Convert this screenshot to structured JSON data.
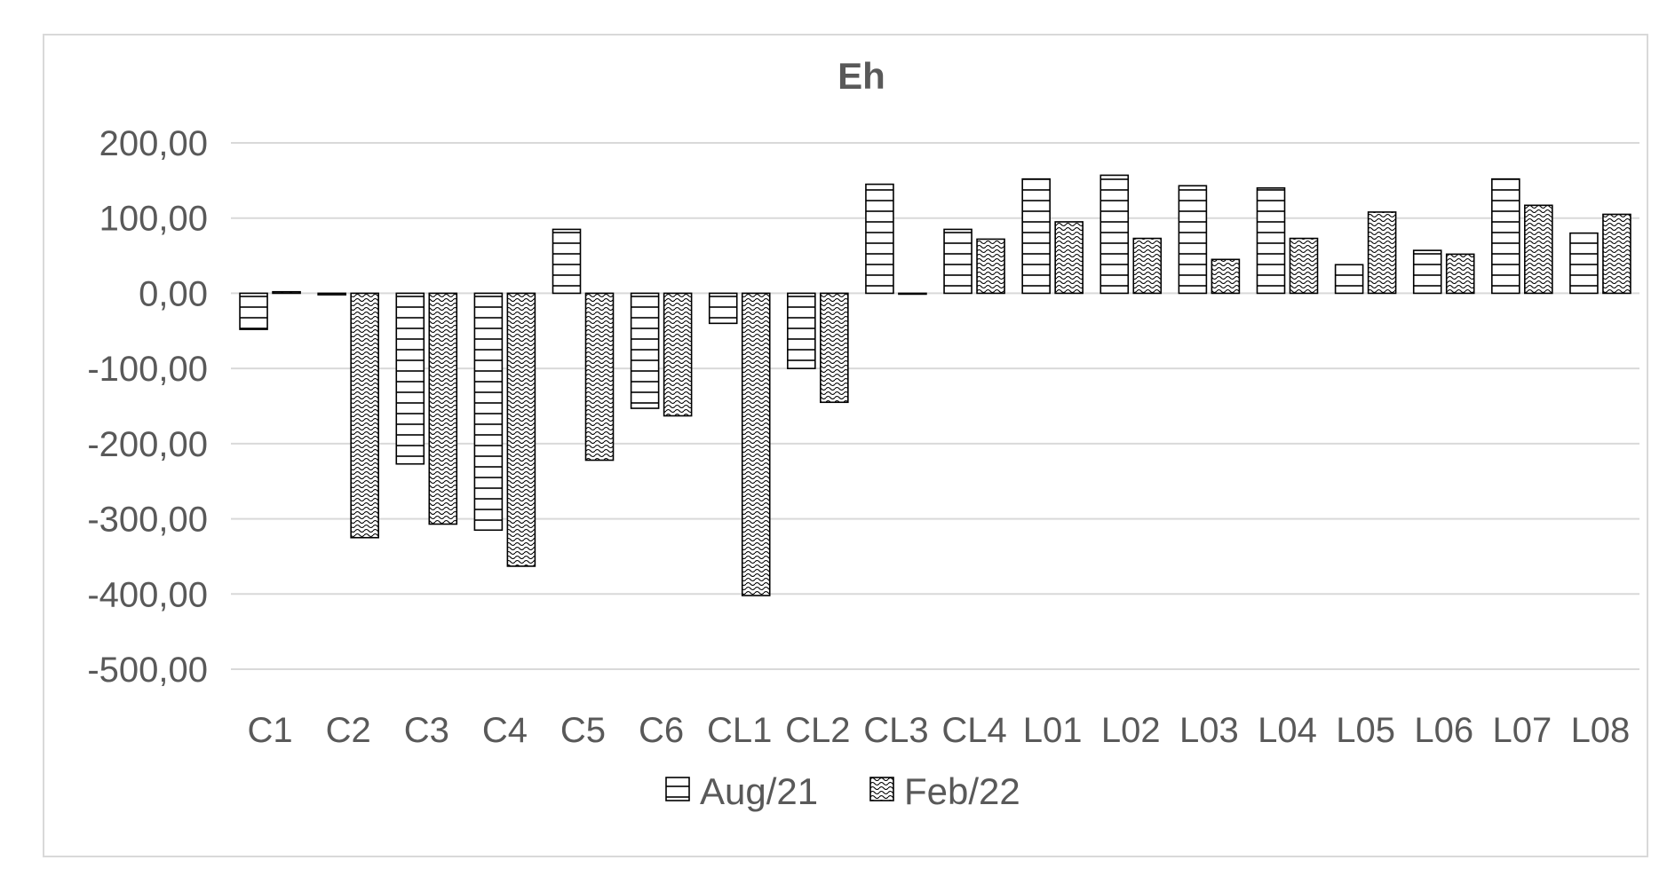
{
  "chart_data": {
    "type": "bar",
    "title": "Eh",
    "xlabel": "",
    "ylabel": "",
    "categories": [
      "C1",
      "C2",
      "C3",
      "C4",
      "C5",
      "C6",
      "CL1",
      "CL2",
      "CL3",
      "CL4",
      "L01",
      "L02",
      "L03",
      "L04",
      "L05",
      "L06",
      "L07",
      "L08"
    ],
    "series": [
      {
        "name": "Aug/21",
        "pattern": "horizontal-stripes",
        "values": [
          -48,
          -2,
          -227,
          -315,
          85,
          -153,
          -40,
          -100,
          145,
          85,
          152,
          157,
          143,
          140,
          38,
          57,
          152,
          80
        ]
      },
      {
        "name": "Feb/22",
        "pattern": "wave-dots",
        "values": [
          2,
          -325,
          -307,
          -363,
          -222,
          -163,
          -402,
          -145,
          0,
          72,
          95,
          73,
          45,
          73,
          108,
          52,
          117,
          105
        ]
      }
    ],
    "ylim": [
      -500,
      200
    ],
    "yticks": [
      "200,00",
      "100,00",
      "0,00",
      "-100,00",
      "-200,00",
      "-300,00",
      "-400,00",
      "-500,00"
    ],
    "ytick_values": [
      200,
      100,
      0,
      -100,
      -200,
      -300,
      -400,
      -500
    ],
    "grid": true,
    "legend_position": "bottom",
    "colors": {
      "bar_outline": "#000000",
      "grid": "#d9d9d9",
      "text": "#595959"
    }
  }
}
